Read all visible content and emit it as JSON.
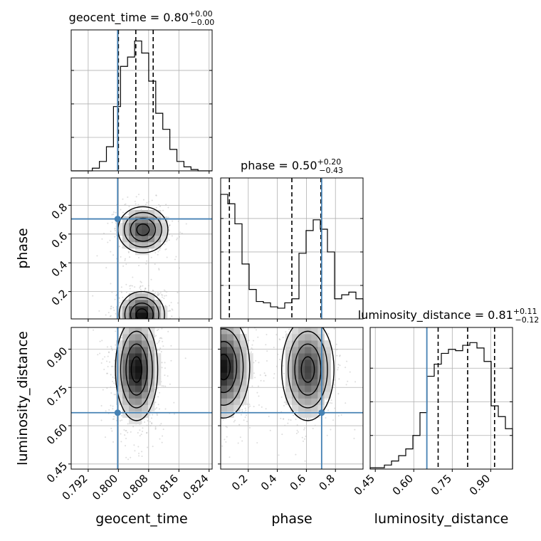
{
  "chart_data": {
    "type": "corner",
    "parameters": [
      "geocent_time",
      "phase",
      "luminosity_distance"
    ],
    "ranges": {
      "geocent_time": [
        0.7875,
        0.8248
      ],
      "phase": [
        0.01,
        0.99
      ],
      "luminosity_distance": [
        0.43,
        0.985
      ]
    },
    "ticks": {
      "geocent_time": {
        "values": [
          0.792,
          0.8,
          0.808,
          0.816,
          0.824
        ],
        "labels": [
          "0.792",
          "0.800",
          "0.808",
          "0.816",
          "0.824"
        ]
      },
      "phase": {
        "values": [
          0.2,
          0.4,
          0.6,
          0.8
        ],
        "labels": [
          "0.2",
          "0.4",
          "0.6",
          "0.8"
        ]
      },
      "luminosity_distance": {
        "values": [
          0.45,
          0.6,
          0.75,
          0.9
        ],
        "labels": [
          "0.45",
          "0.60",
          "0.75",
          "0.90"
        ]
      }
    },
    "truths": {
      "geocent_time": 0.7998,
      "phase": 0.705,
      "luminosity_distance": 0.651
    },
    "titles": {
      "geocent_time": {
        "text": "geocent_time = 0.80",
        "plus": "+0.00",
        "minus": "−0.00"
      },
      "phase": {
        "text": "phase = 0.50",
        "plus": "+0.20",
        "minus": "−0.43"
      },
      "luminosity_distance": {
        "text": "luminosity_distance = 0.81",
        "plus": "+0.11",
        "minus": "−0.12"
      }
    },
    "quantiles": {
      "geocent_time": [
        0.8,
        0.8046,
        0.8092
      ],
      "phase": [
        0.07,
        0.5,
        0.7
      ],
      "luminosity_distance": [
        0.695,
        0.81,
        0.915
      ]
    },
    "histograms": {
      "geocent_time": {
        "edges_range": [
          0.7875,
          0.8248
        ],
        "counts": [
          0,
          0,
          0,
          0.02,
          0.07,
          0.18,
          0.48,
          0.78,
          0.85,
          0.97,
          0.88,
          0.67,
          0.43,
          0.31,
          0.16,
          0.07,
          0.03,
          0.01,
          0,
          0
        ]
      },
      "phase": {
        "edges_range": [
          0.01,
          0.99
        ],
        "counts": [
          0.93,
          0.86,
          0.71,
          0.41,
          0.22,
          0.13,
          0.12,
          0.09,
          0.08,
          0.12,
          0.15,
          0.49,
          0.66,
          0.74,
          0.67,
          0.5,
          0.15,
          0.18,
          0.2,
          0.15
        ]
      },
      "luminosity_distance": {
        "edges_range": [
          0.43,
          0.985
        ],
        "counts": [
          0.01,
          0.01,
          0.03,
          0.06,
          0.1,
          0.15,
          0.25,
          0.42,
          0.69,
          0.78,
          0.86,
          0.89,
          0.88,
          0.92,
          0.94,
          0.9,
          0.8,
          0.47,
          0.39,
          0.3
        ]
      }
    },
    "joint_density": [
      {
        "x": "geocent_time",
        "y": "phase",
        "modes": [
          {
            "cx": 0.8065,
            "cy": 0.63,
            "sx": 0.0033,
            "sy": 0.08,
            "w": 1.0
          },
          {
            "cx": 0.8062,
            "cy": 0.04,
            "sx": 0.003,
            "sy": 0.08,
            "w": 1.3
          }
        ]
      },
      {
        "x": "geocent_time",
        "y": "luminosity_distance",
        "modes": [
          {
            "cx": 0.8048,
            "cy": 0.82,
            "sx": 0.0028,
            "sy": 0.1,
            "w": 1.0
          }
        ]
      },
      {
        "x": "phase",
        "y": "luminosity_distance",
        "modes": [
          {
            "cx": 0.03,
            "cy": 0.83,
            "sx": 0.09,
            "sy": 0.1,
            "w": 1.0
          },
          {
            "cx": 0.61,
            "cy": 0.82,
            "sx": 0.09,
            "sy": 0.1,
            "w": 0.8
          }
        ]
      }
    ],
    "grid": true,
    "legend": "none",
    "colors": {
      "truth": "#4682b4",
      "hist": "#000000",
      "points": "#bbbbbb",
      "quantile": "#000000"
    }
  }
}
